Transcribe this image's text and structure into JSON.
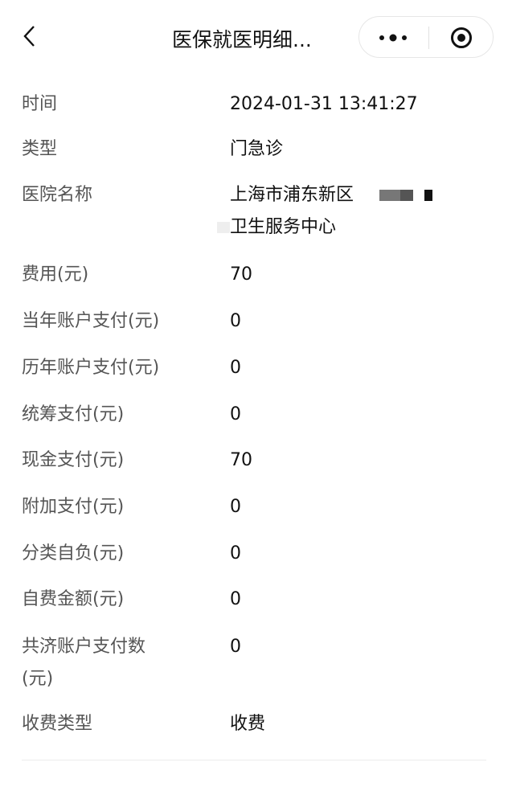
{
  "header": {
    "title": "医保就医明细...",
    "more_icon": "more-dots-icon",
    "close_icon": "target-icon",
    "back_icon": "chevron-left-icon"
  },
  "rows": [
    {
      "label": "时间",
      "value": "2024-01-31 13:41:27"
    },
    {
      "label": "类型",
      "value": "门急诊"
    },
    {
      "label": "医院名称",
      "value": "上海市浦东新区",
      "value_line2": "卫生服务中心"
    },
    {
      "label": "费用(元)",
      "value": "70"
    },
    {
      "label": "当年账户支付(元)",
      "value": "0"
    },
    {
      "label": "历年账户支付(元)",
      "value": "0"
    },
    {
      "label": "统筹支付(元)",
      "value": "0"
    },
    {
      "label": "现金支付(元)",
      "value": "70"
    },
    {
      "label": "附加支付(元)",
      "value": "0"
    },
    {
      "label": "分类自负(元)",
      "value": "0"
    },
    {
      "label": "自费金额(元)",
      "value": "0"
    },
    {
      "label": "共济账户支付数",
      "label_line2": "(元)",
      "value": "0"
    },
    {
      "label": "收费类型",
      "value": "收费"
    }
  ]
}
